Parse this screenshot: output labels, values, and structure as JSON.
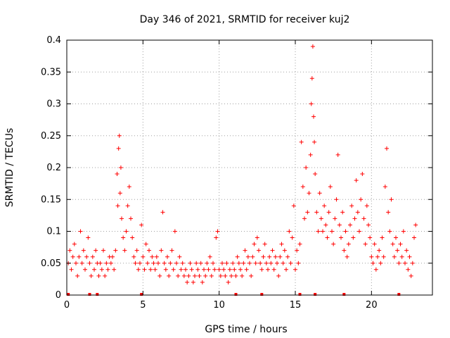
{
  "chart_data": {
    "type": "scatter",
    "title": "Day 346 of 2021, SRMTID for receiver kuj2",
    "xlabel": "GPS time / hours",
    "ylabel": "SRMTID / TECUs",
    "xlim": [
      0,
      24
    ],
    "ylim": [
      0,
      0.4
    ],
    "grid": true,
    "marker": "plus",
    "marker_color": "#ff0000",
    "x_ticks": [
      0,
      5,
      10,
      15,
      20
    ],
    "x_tick_labels": [
      "0",
      "5",
      "10",
      "15",
      "20"
    ],
    "y_ticks": [
      0,
      0.05,
      0.1,
      0.15,
      0.2,
      0.25,
      0.3,
      0.35,
      0.4
    ],
    "y_tick_labels": [
      "0",
      "0.05",
      "0.1",
      "0.15",
      "0.2",
      "0.25",
      "0.3",
      "0.35",
      "0.4"
    ],
    "zero_markers_x": [
      0.1,
      1.5,
      2.0,
      4.9,
      11.1,
      12.8,
      15.3,
      16.3,
      18.2,
      21.8
    ],
    "series": [
      {
        "name": "SRMTID",
        "points": [
          [
            0.1,
            0.05
          ],
          [
            0.2,
            0.07
          ],
          [
            0.3,
            0.04
          ],
          [
            0.4,
            0.06
          ],
          [
            0.5,
            0.08
          ],
          [
            0.6,
            0.05
          ],
          [
            0.7,
            0.03
          ],
          [
            0.8,
            0.06
          ],
          [
            0.9,
            0.1
          ],
          [
            1.0,
            0.05
          ],
          [
            1.1,
            0.07
          ],
          [
            1.2,
            0.04
          ],
          [
            1.3,
            0.06
          ],
          [
            1.4,
            0.09
          ],
          [
            1.5,
            0.05
          ],
          [
            1.6,
            0.03
          ],
          [
            1.7,
            0.06
          ],
          [
            1.8,
            0.04
          ],
          [
            1.9,
            0.07
          ],
          [
            2.0,
            0.05
          ],
          [
            2.1,
            0.03
          ],
          [
            2.2,
            0.05
          ],
          [
            2.3,
            0.04
          ],
          [
            2.4,
            0.07
          ],
          [
            2.5,
            0.03
          ],
          [
            2.6,
            0.05
          ],
          [
            2.7,
            0.04
          ],
          [
            2.8,
            0.06
          ],
          [
            2.9,
            0.05
          ],
          [
            3.0,
            0.06
          ],
          [
            3.1,
            0.04
          ],
          [
            3.2,
            0.07
          ],
          [
            3.3,
            0.19
          ],
          [
            3.35,
            0.14
          ],
          [
            3.4,
            0.23
          ],
          [
            3.45,
            0.25
          ],
          [
            3.5,
            0.16
          ],
          [
            3.55,
            0.2
          ],
          [
            3.6,
            0.12
          ],
          [
            3.7,
            0.09
          ],
          [
            3.8,
            0.07
          ],
          [
            3.9,
            0.1
          ],
          [
            4.0,
            0.14
          ],
          [
            4.1,
            0.17
          ],
          [
            4.2,
            0.12
          ],
          [
            4.3,
            0.09
          ],
          [
            4.4,
            0.06
          ],
          [
            4.5,
            0.05
          ],
          [
            4.6,
            0.07
          ],
          [
            4.7,
            0.04
          ],
          [
            4.8,
            0.05
          ],
          [
            4.9,
            0.11
          ],
          [
            5.0,
            0.06
          ],
          [
            5.1,
            0.04
          ],
          [
            5.2,
            0.08
          ],
          [
            5.3,
            0.05
          ],
          [
            5.4,
            0.07
          ],
          [
            5.5,
            0.04
          ],
          [
            5.6,
            0.06
          ],
          [
            5.7,
            0.05
          ],
          [
            5.8,
            0.04
          ],
          [
            5.9,
            0.06
          ],
          [
            6.0,
            0.05
          ],
          [
            6.1,
            0.03
          ],
          [
            6.2,
            0.07
          ],
          [
            6.3,
            0.13
          ],
          [
            6.4,
            0.05
          ],
          [
            6.5,
            0.04
          ],
          [
            6.6,
            0.06
          ],
          [
            6.7,
            0.03
          ],
          [
            6.8,
            0.05
          ],
          [
            6.9,
            0.07
          ],
          [
            7.0,
            0.04
          ],
          [
            7.1,
            0.1
          ],
          [
            7.2,
            0.05
          ],
          [
            7.3,
            0.03
          ],
          [
            7.4,
            0.06
          ],
          [
            7.5,
            0.04
          ],
          [
            7.6,
            0.05
          ],
          [
            7.7,
            0.03
          ],
          [
            7.8,
            0.04
          ],
          [
            7.9,
            0.02
          ],
          [
            8.0,
            0.03
          ],
          [
            8.1,
            0.05
          ],
          [
            8.2,
            0.04
          ],
          [
            8.3,
            0.02
          ],
          [
            8.4,
            0.03
          ],
          [
            8.5,
            0.05
          ],
          [
            8.6,
            0.04
          ],
          [
            8.7,
            0.03
          ],
          [
            8.8,
            0.05
          ],
          [
            8.9,
            0.02
          ],
          [
            9.0,
            0.04
          ],
          [
            9.1,
            0.03
          ],
          [
            9.2,
            0.05
          ],
          [
            9.3,
            0.04
          ],
          [
            9.4,
            0.06
          ],
          [
            9.5,
            0.03
          ],
          [
            9.6,
            0.05
          ],
          [
            9.7,
            0.04
          ],
          [
            9.8,
            0.09
          ],
          [
            9.9,
            0.1
          ],
          [
            10.0,
            0.04
          ],
          [
            10.1,
            0.03
          ],
          [
            10.2,
            0.05
          ],
          [
            10.3,
            0.04
          ],
          [
            10.4,
            0.03
          ],
          [
            10.5,
            0.05
          ],
          [
            10.6,
            0.02
          ],
          [
            10.7,
            0.04
          ],
          [
            10.8,
            0.03
          ],
          [
            10.9,
            0.05
          ],
          [
            11.0,
            0.04
          ],
          [
            11.1,
            0.03
          ],
          [
            11.2,
            0.06
          ],
          [
            11.3,
            0.05
          ],
          [
            11.4,
            0.04
          ],
          [
            11.5,
            0.03
          ],
          [
            11.6,
            0.05
          ],
          [
            11.7,
            0.07
          ],
          [
            11.8,
            0.04
          ],
          [
            11.9,
            0.06
          ],
          [
            12.0,
            0.05
          ],
          [
            12.1,
            0.03
          ],
          [
            12.2,
            0.06
          ],
          [
            12.3,
            0.08
          ],
          [
            12.4,
            0.05
          ],
          [
            12.5,
            0.09
          ],
          [
            12.6,
            0.07
          ],
          [
            12.7,
            0.05
          ],
          [
            12.8,
            0.04
          ],
          [
            12.9,
            0.06
          ],
          [
            13.0,
            0.08
          ],
          [
            13.1,
            0.05
          ],
          [
            13.2,
            0.04
          ],
          [
            13.3,
            0.06
          ],
          [
            13.4,
            0.05
          ],
          [
            13.5,
            0.07
          ],
          [
            13.6,
            0.04
          ],
          [
            13.7,
            0.06
          ],
          [
            13.8,
            0.05
          ],
          [
            13.9,
            0.03
          ],
          [
            14.0,
            0.06
          ],
          [
            14.1,
            0.08
          ],
          [
            14.2,
            0.05
          ],
          [
            14.3,
            0.07
          ],
          [
            14.4,
            0.04
          ],
          [
            14.5,
            0.06
          ],
          [
            14.6,
            0.1
          ],
          [
            14.7,
            0.05
          ],
          [
            14.8,
            0.09
          ],
          [
            14.9,
            0.14
          ],
          [
            15.0,
            0.04
          ],
          [
            15.1,
            0.07
          ],
          [
            15.2,
            0.05
          ],
          [
            15.3,
            0.08
          ],
          [
            15.4,
            0.24
          ],
          [
            15.5,
            0.17
          ],
          [
            15.6,
            0.12
          ],
          [
            15.7,
            0.2
          ],
          [
            15.8,
            0.13
          ],
          [
            15.9,
            0.16
          ],
          [
            16.0,
            0.22
          ],
          [
            16.05,
            0.3
          ],
          [
            16.1,
            0.34
          ],
          [
            16.15,
            0.39
          ],
          [
            16.2,
            0.28
          ],
          [
            16.25,
            0.24
          ],
          [
            16.3,
            0.19
          ],
          [
            16.4,
            0.13
          ],
          [
            16.5,
            0.1
          ],
          [
            16.6,
            0.16
          ],
          [
            16.7,
            0.12
          ],
          [
            16.8,
            0.1
          ],
          [
            16.9,
            0.14
          ],
          [
            17.0,
            0.11
          ],
          [
            17.1,
            0.09
          ],
          [
            17.2,
            0.13
          ],
          [
            17.3,
            0.17
          ],
          [
            17.4,
            0.1
          ],
          [
            17.5,
            0.08
          ],
          [
            17.6,
            0.12
          ],
          [
            17.7,
            0.15
          ],
          [
            17.8,
            0.22
          ],
          [
            17.9,
            0.11
          ],
          [
            18.0,
            0.09
          ],
          [
            18.1,
            0.13
          ],
          [
            18.2,
            0.07
          ],
          [
            18.3,
            0.1
          ],
          [
            18.4,
            0.06
          ],
          [
            18.5,
            0.08
          ],
          [
            18.6,
            0.11
          ],
          [
            18.7,
            0.14
          ],
          [
            18.8,
            0.09
          ],
          [
            18.9,
            0.12
          ],
          [
            19.0,
            0.18
          ],
          [
            19.1,
            0.13
          ],
          [
            19.2,
            0.1
          ],
          [
            19.3,
            0.15
          ],
          [
            19.4,
            0.19
          ],
          [
            19.5,
            0.12
          ],
          [
            19.6,
            0.08
          ],
          [
            19.7,
            0.14
          ],
          [
            19.8,
            0.11
          ],
          [
            19.9,
            0.09
          ],
          [
            20.0,
            0.06
          ],
          [
            20.1,
            0.05
          ],
          [
            20.2,
            0.08
          ],
          [
            20.3,
            0.04
          ],
          [
            20.4,
            0.06
          ],
          [
            20.5,
            0.07
          ],
          [
            20.6,
            0.05
          ],
          [
            20.7,
            0.09
          ],
          [
            20.8,
            0.06
          ],
          [
            20.9,
            0.17
          ],
          [
            21.0,
            0.23
          ],
          [
            21.1,
            0.13
          ],
          [
            21.2,
            0.1
          ],
          [
            21.3,
            0.15
          ],
          [
            21.4,
            0.08
          ],
          [
            21.5,
            0.06
          ],
          [
            21.6,
            0.09
          ],
          [
            21.7,
            0.07
          ],
          [
            21.8,
            0.05
          ],
          [
            21.9,
            0.08
          ],
          [
            22.0,
            0.06
          ],
          [
            22.1,
            0.1
          ],
          [
            22.2,
            0.05
          ],
          [
            22.3,
            0.07
          ],
          [
            22.4,
            0.04
          ],
          [
            22.5,
            0.06
          ],
          [
            22.6,
            0.03
          ],
          [
            22.7,
            0.05
          ],
          [
            22.8,
            0.09
          ],
          [
            22.9,
            0.11
          ]
        ]
      }
    ]
  }
}
